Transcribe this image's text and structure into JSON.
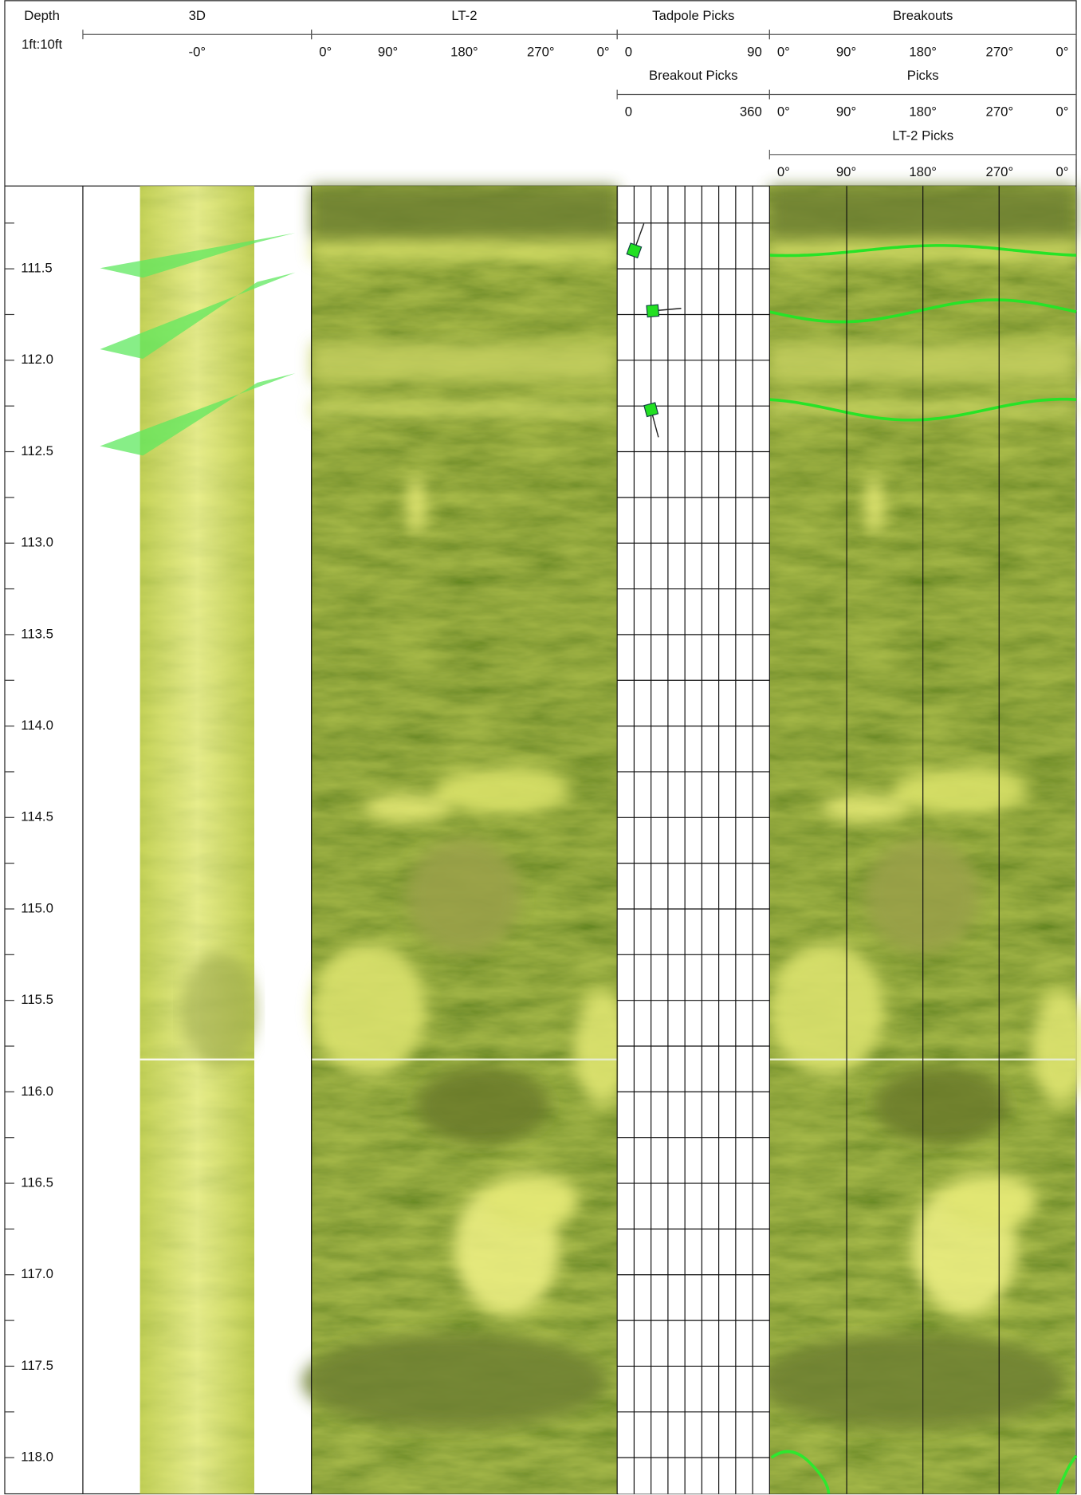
{
  "header": {
    "depth_title": "Depth",
    "depth_scale": "1ft:10ft",
    "tracks": [
      {
        "title": "3D",
        "scale": [
          "-0°"
        ]
      },
      {
        "title": "LT-2",
        "scale": [
          "0°",
          "90°",
          "180°",
          "270°",
          "0°"
        ]
      },
      {
        "title": "Tadpole Picks",
        "scale": [
          0,
          90
        ]
      },
      {
        "title": "Breakout Picks",
        "scale": [
          0,
          360
        ]
      },
      {
        "title": "Breakouts",
        "scale": [
          "0°",
          "90°",
          "180°",
          "270°",
          "0°"
        ]
      },
      {
        "title": "Picks",
        "scale": [
          "0°",
          "90°",
          "180°",
          "270°",
          "0°"
        ]
      },
      {
        "title": "LT-2 Picks",
        "scale": [
          "0°",
          "90°",
          "180°",
          "270°",
          "0°"
        ]
      }
    ]
  },
  "depth_axis": {
    "ylim": [
      111.047,
      118.198
    ],
    "ticks": [
      111.5,
      {
        "value": 112,
        "label": "112.0"
      },
      112.5,
      {
        "value": 113,
        "label": "113.0"
      },
      113.5,
      {
        "value": 114,
        "label": "114.0"
      },
      114.5,
      {
        "value": 115,
        "label": "115.0"
      },
      115.5,
      {
        "value": 116,
        "label": "116.0"
      },
      116.5,
      {
        "value": 117,
        "label": "117.0"
      },
      117.5,
      {
        "value": 118,
        "label": "118.0"
      }
    ],
    "minor_ticks": [
      111.25,
      111.75,
      112.25,
      112.75,
      113.25,
      113.75,
      114.25,
      114.75,
      115.25,
      115.75,
      116.25,
      116.75,
      117.25,
      117.75
    ]
  },
  "tadpole_picks": [
    {
      "depth": 111.4,
      "dip": 10,
      "azimuth": 20
    },
    {
      "depth": 111.73,
      "dip": 21,
      "azimuth": 85
    },
    {
      "depth": 112.27,
      "dip": 20,
      "azimuth": 165
    }
  ]
}
